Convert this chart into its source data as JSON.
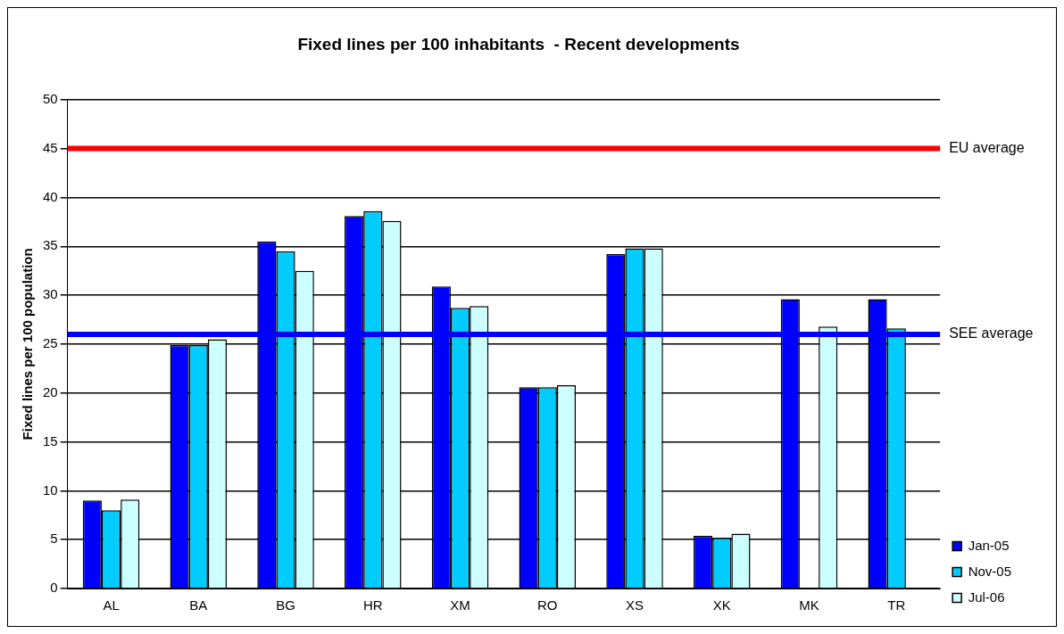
{
  "chart_data": {
    "type": "bar",
    "title": "Fixed lines per 100 inhabitants  - Recent developments",
    "ylabel": "Fixed lines per 100 population",
    "categories": [
      "AL",
      "BA",
      "BG",
      "HR",
      "XM",
      "RO",
      "XS",
      "XK",
      "MK",
      "TR"
    ],
    "series": [
      {
        "name": "Jan-05",
        "color": "#0000ff",
        "values": [
          9.0,
          24.9,
          35.5,
          38.1,
          30.9,
          20.6,
          34.2,
          5.4,
          29.6,
          29.6
        ]
      },
      {
        "name": "Nov-05",
        "color": "#00ccff",
        "values": [
          8.0,
          24.9,
          34.5,
          38.6,
          28.7,
          20.6,
          34.8,
          5.2,
          null,
          26.6
        ]
      },
      {
        "name": "Jul-06",
        "color": "#ccffff",
        "values": [
          9.1,
          25.5,
          32.5,
          37.6,
          28.9,
          20.8,
          34.8,
          5.6,
          26.8,
          null
        ]
      }
    ],
    "ylim": [
      0,
      50
    ],
    "yticks": [
      0,
      5,
      10,
      15,
      20,
      25,
      30,
      35,
      40,
      45,
      50
    ],
    "grid": "y",
    "legend": "right",
    "ref_lines": [
      {
        "axis": "y",
        "value": 45,
        "label": "EU average",
        "color": "#ff0000"
      },
      {
        "axis": "y",
        "value": 26,
        "label": "SEE average",
        "color": "#0000ff"
      }
    ]
  }
}
